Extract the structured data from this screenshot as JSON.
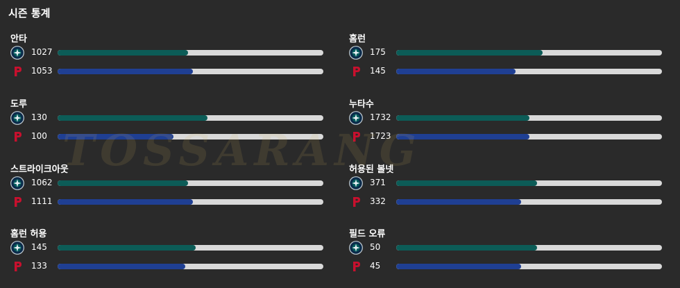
{
  "title": "시즌 통계",
  "teams": {
    "home": {
      "icon": "mariners-logo-icon",
      "color": "#0c5c57"
    },
    "away": {
      "icon": "phillies-logo-icon",
      "color": "#1f3f93"
    }
  },
  "stats": [
    {
      "label": "안타",
      "home": {
        "value": "1027",
        "fill": 0.49
      },
      "away": {
        "value": "1053",
        "fill": 0.51
      }
    },
    {
      "label": "홈런",
      "home": {
        "value": "175",
        "fill": 0.55
      },
      "away": {
        "value": "145",
        "fill": 0.45
      }
    },
    {
      "label": "도루",
      "home": {
        "value": "130",
        "fill": 0.565
      },
      "away": {
        "value": "100",
        "fill": 0.435
      }
    },
    {
      "label": "누타수",
      "home": {
        "value": "1732",
        "fill": 0.5
      },
      "away": {
        "value": "1723",
        "fill": 0.5
      }
    },
    {
      "label": "스트라이크아웃",
      "home": {
        "value": "1062",
        "fill": 0.49
      },
      "away": {
        "value": "1111",
        "fill": 0.51
      }
    },
    {
      "label": "허용된 볼넷",
      "home": {
        "value": "371",
        "fill": 0.53
      },
      "away": {
        "value": "332",
        "fill": 0.47
      }
    },
    {
      "label": "홈런 허용",
      "home": {
        "value": "145",
        "fill": 0.52
      },
      "away": {
        "value": "133",
        "fill": 0.48
      }
    },
    {
      "label": "필드 오류",
      "home": {
        "value": "50",
        "fill": 0.53
      },
      "away": {
        "value": "45",
        "fill": 0.47
      }
    }
  ]
}
